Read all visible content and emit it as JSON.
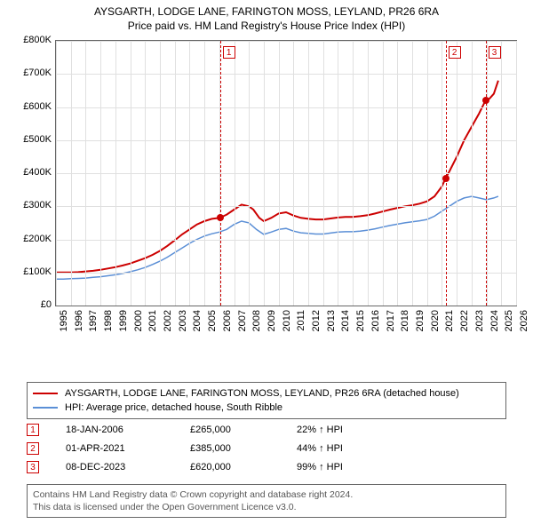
{
  "title_line1": "AYSGARTH, LODGE LANE, FARINGTON MOSS, LEYLAND, PR26 6RA",
  "title_line2": "Price paid vs. HM Land Registry's House Price Index (HPI)",
  "chart": {
    "type": "line",
    "background_color": "#ffffff",
    "grid_color": "#e0e0e0",
    "axis_color": "#666666",
    "xlim": [
      1995,
      2026
    ],
    "ylim": [
      0,
      800000
    ],
    "yticks": [
      0,
      100000,
      200000,
      300000,
      400000,
      500000,
      600000,
      700000,
      800000
    ],
    "ytick_labels": [
      "£0",
      "£100K",
      "£200K",
      "£300K",
      "£400K",
      "£500K",
      "£600K",
      "£700K",
      "£800K"
    ],
    "xticks": [
      1995,
      1996,
      1997,
      1998,
      1999,
      2000,
      2001,
      2002,
      2003,
      2004,
      2005,
      2006,
      2007,
      2008,
      2009,
      2010,
      2011,
      2012,
      2013,
      2014,
      2015,
      2016,
      2017,
      2018,
      2019,
      2020,
      2021,
      2022,
      2023,
      2024,
      2025,
      2026
    ],
    "series": [
      {
        "name": "AYSGARTH, LODGE LANE, FARINGTON MOSS, LEYLAND, PR26 6RA (detached house)",
        "color": "#cc0000",
        "line_width": 2,
        "data": [
          [
            1995,
            100000
          ],
          [
            1995.5,
            100000
          ],
          [
            1996,
            100000
          ],
          [
            1996.5,
            101000
          ],
          [
            1997,
            103000
          ],
          [
            1997.5,
            105000
          ],
          [
            1998,
            108000
          ],
          [
            1998.5,
            112000
          ],
          [
            1999,
            116000
          ],
          [
            1999.5,
            121000
          ],
          [
            2000,
            127000
          ],
          [
            2000.5,
            135000
          ],
          [
            2001,
            143000
          ],
          [
            2001.5,
            153000
          ],
          [
            2002,
            165000
          ],
          [
            2002.5,
            180000
          ],
          [
            2003,
            197000
          ],
          [
            2003.5,
            215000
          ],
          [
            2004,
            230000
          ],
          [
            2004.5,
            245000
          ],
          [
            2005,
            255000
          ],
          [
            2005.5,
            262000
          ],
          [
            2006.05,
            265000
          ],
          [
            2006.5,
            275000
          ],
          [
            2007,
            290000
          ],
          [
            2007.5,
            305000
          ],
          [
            2008,
            300000
          ],
          [
            2008.3,
            290000
          ],
          [
            2008.7,
            265000
          ],
          [
            2009,
            255000
          ],
          [
            2009.5,
            265000
          ],
          [
            2010,
            278000
          ],
          [
            2010.5,
            282000
          ],
          [
            2011,
            272000
          ],
          [
            2011.5,
            265000
          ],
          [
            2012,
            262000
          ],
          [
            2012.5,
            260000
          ],
          [
            2013,
            260000
          ],
          [
            2013.5,
            263000
          ],
          [
            2014,
            266000
          ],
          [
            2014.5,
            268000
          ],
          [
            2015,
            268000
          ],
          [
            2015.5,
            270000
          ],
          [
            2016,
            273000
          ],
          [
            2016.5,
            278000
          ],
          [
            2017,
            284000
          ],
          [
            2017.5,
            290000
          ],
          [
            2018,
            295000
          ],
          [
            2018.5,
            300000
          ],
          [
            2019,
            303000
          ],
          [
            2019.5,
            308000
          ],
          [
            2020,
            315000
          ],
          [
            2020.5,
            330000
          ],
          [
            2021,
            360000
          ],
          [
            2021.25,
            385000
          ],
          [
            2021.5,
            405000
          ],
          [
            2022,
            450000
          ],
          [
            2022.5,
            500000
          ],
          [
            2023,
            540000
          ],
          [
            2023.5,
            580000
          ],
          [
            2023.94,
            620000
          ],
          [
            2024.2,
            625000
          ],
          [
            2024.5,
            640000
          ],
          [
            2024.8,
            680000
          ]
        ]
      },
      {
        "name": "HPI: Average price, detached house, South Ribble",
        "color": "#5b8fd6",
        "line_width": 1.5,
        "data": [
          [
            1995,
            80000
          ],
          [
            1995.5,
            80000
          ],
          [
            1996,
            81000
          ],
          [
            1996.5,
            82000
          ],
          [
            1997,
            83000
          ],
          [
            1997.5,
            85000
          ],
          [
            1998,
            87000
          ],
          [
            1998.5,
            90000
          ],
          [
            1999,
            93000
          ],
          [
            1999.5,
            97000
          ],
          [
            2000,
            102000
          ],
          [
            2000.5,
            108000
          ],
          [
            2001,
            115000
          ],
          [
            2001.5,
            124000
          ],
          [
            2002,
            134000
          ],
          [
            2002.5,
            146000
          ],
          [
            2003,
            160000
          ],
          [
            2003.5,
            174000
          ],
          [
            2004,
            188000
          ],
          [
            2004.5,
            200000
          ],
          [
            2005,
            210000
          ],
          [
            2005.5,
            217000
          ],
          [
            2006,
            222000
          ],
          [
            2006.5,
            230000
          ],
          [
            2007,
            245000
          ],
          [
            2007.5,
            255000
          ],
          [
            2008,
            250000
          ],
          [
            2008.5,
            230000
          ],
          [
            2009,
            215000
          ],
          [
            2009.5,
            222000
          ],
          [
            2010,
            230000
          ],
          [
            2010.5,
            233000
          ],
          [
            2011,
            225000
          ],
          [
            2011.5,
            220000
          ],
          [
            2012,
            218000
          ],
          [
            2012.5,
            216000
          ],
          [
            2013,
            216000
          ],
          [
            2013.5,
            219000
          ],
          [
            2014,
            222000
          ],
          [
            2014.5,
            223000
          ],
          [
            2015,
            223000
          ],
          [
            2015.5,
            225000
          ],
          [
            2016,
            228000
          ],
          [
            2016.5,
            232000
          ],
          [
            2017,
            237000
          ],
          [
            2017.5,
            242000
          ],
          [
            2018,
            246000
          ],
          [
            2018.5,
            250000
          ],
          [
            2019,
            253000
          ],
          [
            2019.5,
            256000
          ],
          [
            2020,
            260000
          ],
          [
            2020.5,
            270000
          ],
          [
            2021,
            285000
          ],
          [
            2021.5,
            300000
          ],
          [
            2022,
            315000
          ],
          [
            2022.5,
            325000
          ],
          [
            2023,
            330000
          ],
          [
            2023.5,
            325000
          ],
          [
            2024,
            320000
          ],
          [
            2024.5,
            325000
          ],
          [
            2024.8,
            330000
          ]
        ]
      }
    ],
    "sale_markers": [
      {
        "n": "1",
        "x": 2006.05,
        "y": 265000,
        "date": "18-JAN-2006",
        "price": "£265,000",
        "pct": "22% ↑ HPI"
      },
      {
        "n": "2",
        "x": 2021.25,
        "y": 385000,
        "date": "01-APR-2021",
        "price": "£385,000",
        "pct": "44% ↑ HPI"
      },
      {
        "n": "3",
        "x": 2023.94,
        "y": 620000,
        "date": "08-DEC-2023",
        "price": "£620,000",
        "pct": "99% ↑ HPI"
      }
    ]
  },
  "legend": {
    "items": [
      {
        "color": "#cc0000",
        "label": "AYSGARTH, LODGE LANE, FARINGTON MOSS, LEYLAND, PR26 6RA (detached house)"
      },
      {
        "color": "#5b8fd6",
        "label": "HPI: Average price, detached house, South Ribble"
      }
    ]
  },
  "footer_line1": "Contains HM Land Registry data © Crown copyright and database right 2024.",
  "footer_line2": "This data is licensed under the Open Government Licence v3.0."
}
